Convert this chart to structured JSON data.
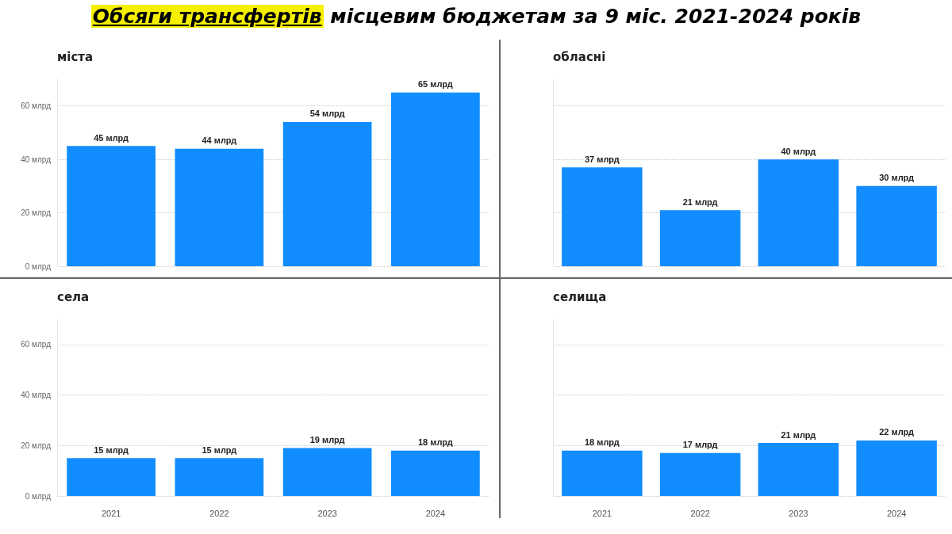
{
  "chart_data": [
    {
      "type": "bar",
      "title": "Обсяги трансфертів місцевим бюджетам за 9 міс. 2021-2024 років",
      "subtitle": "міста",
      "categories": [
        "2021",
        "2022",
        "2023",
        "2024"
      ],
      "series": [
        {
          "color": "#118dff",
          "values": [
            45,
            44,
            54,
            65
          ],
          "value_labels": [
            "45 млрд",
            "44 млрд",
            "54 млрд",
            "65 млрд"
          ]
        }
      ],
      "ylim": [
        0,
        70
      ],
      "yticks": [
        {
          "value": 0,
          "label": "0 млрд"
        },
        {
          "value": 20,
          "label": "20 млрд"
        },
        {
          "value": 40,
          "label": "40 млрд"
        },
        {
          "value": 60,
          "label": "60 млрд"
        }
      ],
      "grid": "y",
      "tick_labels": "y"
    },
    {
      "type": "bar",
      "subtitle": "обласні",
      "categories": [
        "2021",
        "2022",
        "2023",
        "2024"
      ],
      "series": [
        {
          "color": "#118dff",
          "values": [
            37,
            21,
            40,
            30
          ],
          "value_labels": [
            "37 млрд",
            "21 млрд",
            "40 млрд",
            "30 млрд"
          ]
        }
      ],
      "ylim": [
        0,
        70
      ],
      "yticks": [
        {
          "value": 0,
          "label": null
        },
        {
          "value": 20,
          "label": null
        },
        {
          "value": 40,
          "label": null
        },
        {
          "value": 60,
          "label": null
        }
      ],
      "grid": "y",
      "tick_labels": false
    },
    {
      "type": "bar",
      "subtitle": "села",
      "categories": [
        "2021",
        "2022",
        "2023",
        "2024"
      ],
      "series": [
        {
          "color": "#118dff",
          "values": [
            15,
            15,
            19,
            18
          ],
          "value_labels": [
            "15 млрд",
            "15 млрд",
            "19 млрд",
            "18 млрд"
          ]
        }
      ],
      "ylim": [
        0,
        70
      ],
      "yticks": [
        {
          "value": 0,
          "label": "0 млрд"
        },
        {
          "value": 20,
          "label": "20 млрд"
        },
        {
          "value": 40,
          "label": "40 млрд"
        },
        {
          "value": 60,
          "label": "60 млрд"
        }
      ],
      "grid": "y"
    },
    {
      "type": "bar",
      "subtitle": "селища",
      "categories": [
        "2021",
        "2022",
        "2023",
        "2024"
      ],
      "series": [
        {
          "color": "#118dff",
          "values": [
            18,
            17,
            21,
            22
          ],
          "value_labels": [
            "18 млрд",
            "17 млрд",
            "21 млрд",
            "22 млрд"
          ]
        }
      ],
      "ylim": [
        0,
        70
      ],
      "yticks": [
        {
          "value": 0,
          "label": null
        },
        {
          "value": 20,
          "label": null
        },
        {
          "value": 40,
          "label": null
        },
        {
          "value": 60,
          "label": null
        }
      ],
      "grid": "y",
      "tick_labels": "x"
    }
  ]
}
